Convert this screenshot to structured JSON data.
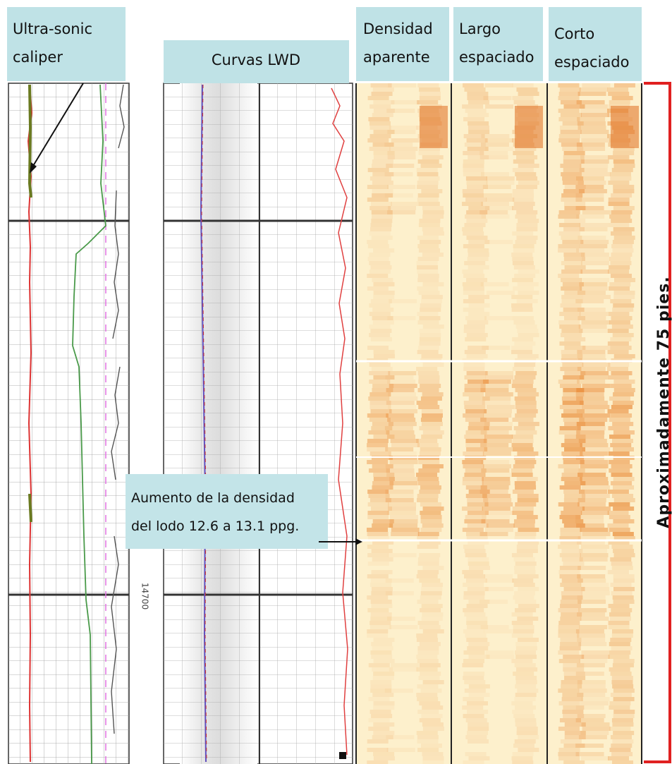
{
  "headers": [
    {
      "lines": [
        "Ultra-sonic",
        "caliper"
      ]
    },
    {
      "lines": [
        "Curvas LWD"
      ]
    },
    {
      "lines": [
        "Densidad",
        "aparente"
      ]
    },
    {
      "lines": [
        "Largo",
        "espaciado"
      ]
    },
    {
      "lines": [
        "Corto",
        "espaciado"
      ]
    }
  ],
  "annotation": {
    "lines": [
      "Aumento de la densidad",
      "del lodo 12.6 a 13.1 ppg."
    ]
  },
  "bracket_label": "Aproximadamente 75 pies.",
  "depth_label": "14700"
}
